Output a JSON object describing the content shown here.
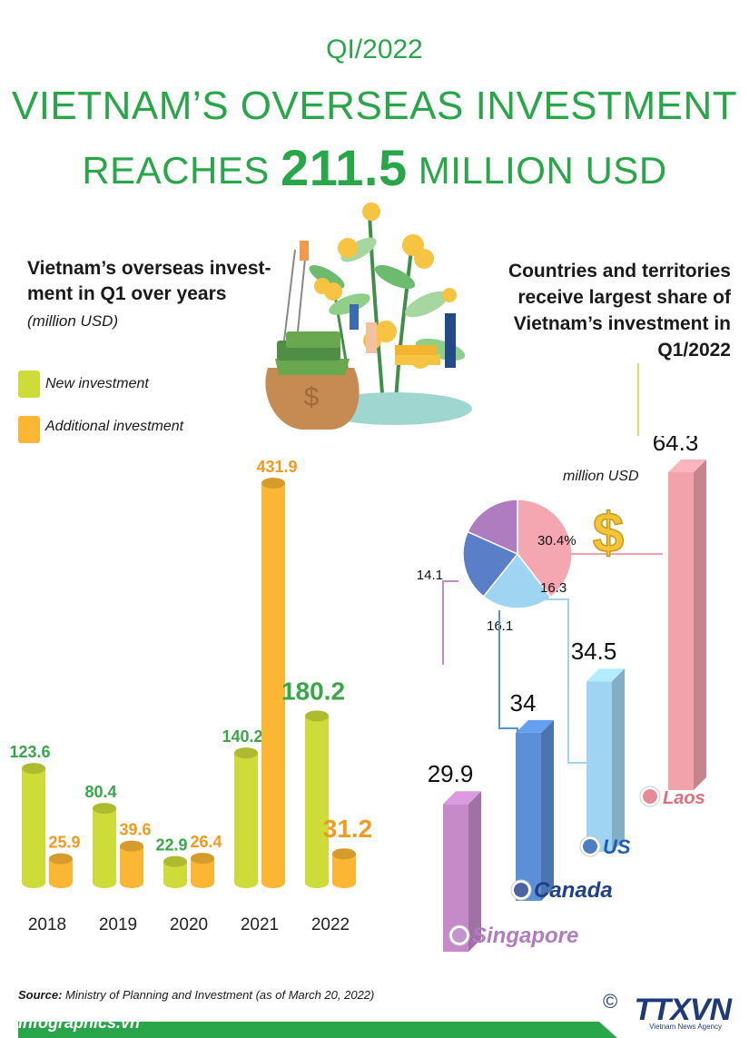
{
  "header": {
    "period": "QI/2022",
    "title_line1": "VIETNAM’S OVERSEAS INVESTMENT",
    "title_line2_pre": "REACHES ",
    "title_line2_value": "211.5",
    "title_line2_post": " MILLION USD"
  },
  "left_chart": {
    "heading": "Vietnam’s overseas invest-ment in Q1 over years",
    "unit": "(million USD)",
    "legend": [
      {
        "label": "New investment",
        "color": "#cddc39"
      },
      {
        "label": "Additional investment",
        "color": "#fbb734"
      }
    ]
  },
  "right_chart": {
    "heading": "Countries and territories receive largest share of Vietnam’s investment in Q1/2022",
    "unit": "million USD",
    "pie_pct_label": "30.4%"
  },
  "chart_data": [
    {
      "type": "bar",
      "categories": [
        "2018",
        "2019",
        "2020",
        "2021",
        "2022"
      ],
      "series": [
        {
          "name": "New investment",
          "values": [
            123.6,
            80.4,
            22.9,
            140.2,
            180.2
          ],
          "color": "#cddc39"
        },
        {
          "name": "Additional investment",
          "values": [
            25.9,
            39.6,
            26.4,
            431.9,
            31.2
          ],
          "color": "#fbb734"
        }
      ]
    },
    {
      "type": "bar",
      "categories": [
        "Singapore",
        "Canada",
        "US",
        "Laos"
      ],
      "values": [
        29.9,
        34,
        34.5,
        64.3
      ],
      "colors": [
        "#c48ac9",
        "#5b8fd6",
        "#9fd4f3",
        "#f2a2ab"
      ],
      "value_labels": [
        "29.9",
        "34",
        "34.5",
        "64.3"
      ]
    },
    {
      "type": "pie",
      "labels": [
        "Laos",
        "US",
        "Canada",
        "Singapore"
      ],
      "slice_labels": [
        "30.4%",
        "16.3",
        "16.1",
        "14.1"
      ],
      "values": [
        30.4,
        16.3,
        16.1,
        14.1
      ],
      "colors": [
        "#f4a7b1",
        "#9fd4f3",
        "#5b7ec9",
        "#b07cc0"
      ]
    }
  ],
  "footer": {
    "source_label": "Source:",
    "source_text": " Ministry of Planning and Investment (as of March 20, 2022)",
    "site": "infographics.vn",
    "brand": "TTXVN",
    "brand_sub": "Vietnam News Agency",
    "copyright": "©"
  },
  "colors": {
    "title_green": "#2aa64a",
    "footer_bar": "#2aa64a",
    "value_green": "#3aa64a",
    "value_orange": "#f29a1f"
  },
  "icons": [
    "money-plant-illustration-icon",
    "dollar-sign-icon",
    "laos-flag-icon",
    "us-flag-icon",
    "canada-flag-icon",
    "singapore-flag-icon"
  ]
}
